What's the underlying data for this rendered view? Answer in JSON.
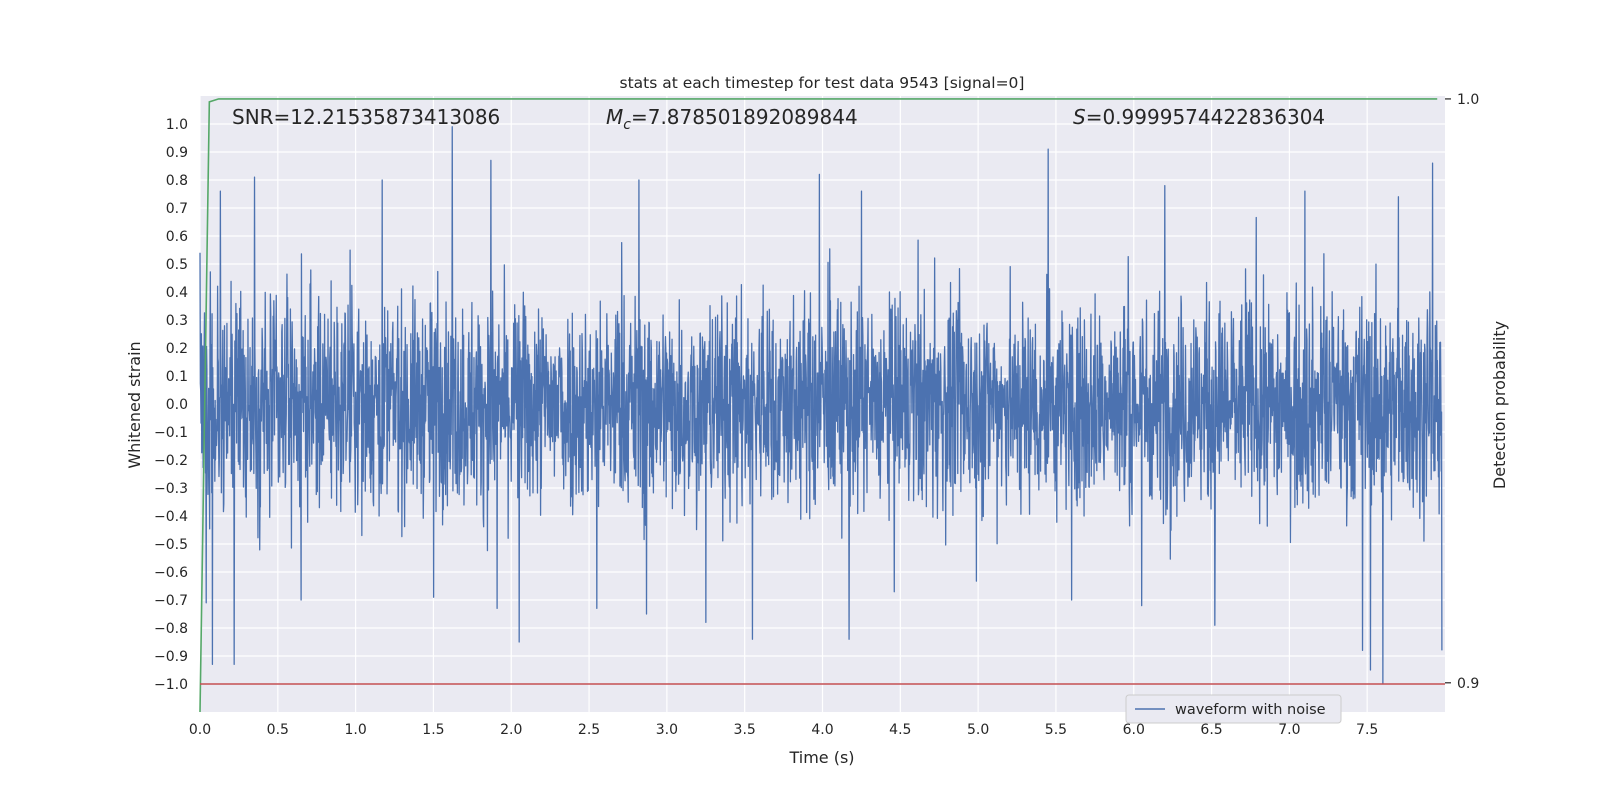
{
  "chart_data": {
    "type": "line",
    "title": "stats at each timestep for test data 9543 [signal=0]",
    "xlabel": "Time (s)",
    "ylabel": "Whitened strain",
    "y2label": "Detection probability",
    "xlim": [
      0.0,
      8.0
    ],
    "ylim": [
      -1.1,
      1.1
    ],
    "y2lim": [
      0.895,
      1.0005
    ],
    "xticks": [
      0.0,
      0.5,
      1.0,
      1.5,
      2.0,
      2.5,
      3.0,
      3.5,
      4.0,
      4.5,
      5.0,
      5.5,
      6.0,
      6.5,
      7.0,
      7.5
    ],
    "xtick_labels": [
      "0.0",
      "0.5",
      "1.0",
      "1.5",
      "2.0",
      "2.5",
      "3.0",
      "3.5",
      "4.0",
      "4.5",
      "5.0",
      "5.5",
      "6.0",
      "6.5",
      "7.0",
      "7.5"
    ],
    "yticks": [
      1.0,
      0.9,
      0.8,
      0.7,
      0.6,
      0.5,
      0.4,
      0.3,
      0.2,
      0.1,
      0.0,
      -0.1,
      -0.2,
      -0.3,
      -0.4,
      -0.5,
      -0.6,
      -0.7,
      -0.8,
      -0.9,
      -1.0
    ],
    "ytick_labels": [
      "1.0",
      "0.9",
      "0.8",
      "0.7",
      "0.6",
      "0.5",
      "0.4",
      "0.3",
      "0.2",
      "0.1",
      "0.0",
      "−0.1",
      "−0.2",
      "−0.3",
      "−0.4",
      "−0.5",
      "−0.6",
      "−0.7",
      "−0.8",
      "−0.9",
      "−1.0"
    ],
    "y2ticks": [
      1.0,
      0.9
    ],
    "y2tick_labels": [
      "1.0",
      "0.9"
    ],
    "grid": true,
    "legend": {
      "position": "lower-right",
      "entries": [
        "waveform with noise"
      ]
    },
    "annotations": {
      "snr": "SNR=12.21535873413086",
      "mc_symbol": "M",
      "mc_sub": "c",
      "mc_value": "=7.878501892089844",
      "s_symbol": "S",
      "s_value": "=0.9999574422836304"
    },
    "colors": {
      "background": "#EAEAF2",
      "grid": "#FFFFFF",
      "waveform": "#4C72B0",
      "detection_probability": "#55A868",
      "threshold": "#C44E52"
    },
    "series": [
      {
        "name": "waveform with noise",
        "axis": "left",
        "description": "whitened strain, approx. 8 s of noise-dominated data",
        "envelope_abs_typical": 0.35,
        "peaks": [
          [
            0.0,
            0.54
          ],
          [
            0.04,
            -0.71
          ],
          [
            0.08,
            -0.93
          ],
          [
            0.13,
            0.76
          ],
          [
            0.22,
            -0.93
          ],
          [
            0.35,
            0.81
          ],
          [
            0.65,
            -0.7
          ],
          [
            1.17,
            0.8
          ],
          [
            1.5,
            -0.69
          ],
          [
            1.62,
            0.99
          ],
          [
            1.87,
            0.87
          ],
          [
            1.91,
            -0.73
          ],
          [
            2.05,
            -0.85
          ],
          [
            2.55,
            -0.73
          ],
          [
            2.82,
            0.8
          ],
          [
            2.87,
            -0.75
          ],
          [
            3.25,
            -0.78
          ],
          [
            3.55,
            -0.84
          ],
          [
            3.98,
            0.82
          ],
          [
            4.17,
            -0.84
          ],
          [
            4.25,
            0.76
          ],
          [
            5.45,
            0.91
          ],
          [
            5.6,
            -0.7
          ],
          [
            6.05,
            -0.72
          ],
          [
            6.2,
            0.78
          ],
          [
            6.52,
            -0.79
          ],
          [
            7.1,
            0.76
          ],
          [
            7.47,
            -0.88
          ],
          [
            7.52,
            -0.95
          ],
          [
            7.6,
            -1.0
          ],
          [
            7.7,
            0.74
          ],
          [
            7.92,
            0.86
          ],
          [
            7.98,
            -0.88
          ]
        ]
      },
      {
        "name": "",
        "axis": "right",
        "x": [
          0.0,
          0.06,
          0.12,
          7.95
        ],
        "values": [
          0.895,
          0.9995,
          1.0,
          1.0
        ]
      },
      {
        "name": "",
        "axis": "left",
        "x": [
          0.0,
          8.0
        ],
        "values": [
          -1.0,
          -1.0
        ]
      }
    ]
  }
}
